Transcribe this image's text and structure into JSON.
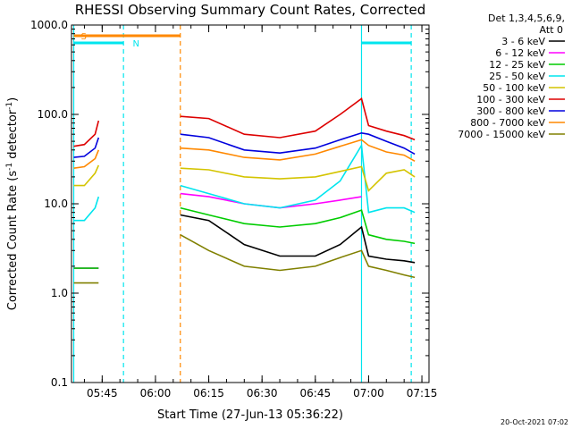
{
  "chart_data": {
    "type": "line",
    "title": "RHESSI Observing Summary Count Rates, Corrected",
    "xlabel": "Start Time (27-Jun-13 05:36:22)",
    "ylabel": "Corrected Count Rate (s",
    "ylabel_sup1": "-1",
    "ylabel_mid": " detector",
    "ylabel_sup2": "-1",
    "ylabel_end": ")",
    "yscale": "log",
    "ylim": [
      0.1,
      1000
    ],
    "xlim": [
      "05:36:22",
      "07:17:00"
    ],
    "x_ticks": [
      "05:45",
      "06:00",
      "06:15",
      "06:30",
      "06:45",
      "07:00",
      "07:15"
    ],
    "y_ticks": [
      "0.1",
      "1.0",
      "10.0",
      "100.0",
      "1000.0"
    ],
    "legend_header": [
      "Det 1,3,4,5,6,9,",
      "Att 0"
    ],
    "legend_position": "right",
    "series": [
      {
        "name": "3 - 6 keV",
        "color": "#000000",
        "segments": [
          {
            "x": [
              "05:37",
              "05:41",
              "05:44"
            ],
            "y": [
              null,
              null,
              null
            ]
          },
          {
            "x": [
              "06:07",
              "06:15",
              "06:25",
              "06:35",
              "06:45",
              "06:52",
              "06:58",
              "07:00",
              "07:05",
              "07:10",
              "07:13"
            ],
            "y": [
              7.5,
              6.5,
              3.5,
              2.6,
              2.6,
              3.5,
              5.5,
              2.6,
              2.4,
              2.3,
              2.2
            ]
          }
        ]
      },
      {
        "name": "6 - 12 keV",
        "color": "#ff00ff",
        "segments": [
          {
            "x": [
              "05:37",
              "05:40",
              "05:43",
              "05:44"
            ],
            "y": [
              1.9,
              1.9,
              1.9,
              1.9
            ]
          },
          {
            "x": [
              "06:07",
              "06:15",
              "06:25",
              "06:35",
              "06:45",
              "06:52",
              "06:58"
            ],
            "y": [
              13,
              12,
              10,
              9,
              10,
              11,
              12
            ]
          }
        ]
      },
      {
        "name": "12 - 25 keV",
        "color": "#00cc00",
        "segments": [
          {
            "x": [
              "05:37",
              "05:40",
              "05:43",
              "05:44"
            ],
            "y": [
              1.9,
              1.9,
              1.9,
              1.9
            ]
          },
          {
            "x": [
              "06:07",
              "06:15",
              "06:25",
              "06:35",
              "06:45",
              "06:52",
              "06:58",
              "07:00",
              "07:05",
              "07:10",
              "07:13"
            ],
            "y": [
              9,
              7.5,
              6,
              5.5,
              6,
              7,
              8.5,
              4.5,
              4,
              3.8,
              3.6
            ]
          }
        ]
      },
      {
        "name": "25 - 50 keV",
        "color": "#00e5ee",
        "segments": [
          {
            "x": [
              "05:37",
              "05:40",
              "05:43",
              "05:44"
            ],
            "y": [
              6.5,
              6.5,
              9,
              12
            ]
          },
          {
            "x": [
              "06:07",
              "06:15",
              "06:25",
              "06:35",
              "06:45",
              "06:52",
              "06:58",
              "07:00",
              "07:05",
              "07:10",
              "07:13"
            ],
            "y": [
              16,
              13,
              10,
              9,
              11,
              18,
              45,
              8,
              9,
              9,
              8
            ]
          }
        ]
      },
      {
        "name": "50 - 100 keV",
        "color": "#d4c400",
        "segments": [
          {
            "x": [
              "05:37",
              "05:40",
              "05:43",
              "05:44"
            ],
            "y": [
              16,
              16,
              22,
              27
            ]
          },
          {
            "x": [
              "06:07",
              "06:15",
              "06:25",
              "06:35",
              "06:45",
              "06:52",
              "06:58",
              "07:00",
              "07:05",
              "07:10",
              "07:13"
            ],
            "y": [
              25,
              24,
              20,
              19,
              20,
              23,
              26,
              14,
              22,
              24,
              20
            ]
          }
        ]
      },
      {
        "name": "100 - 300 keV",
        "color": "#dd0000",
        "segments": [
          {
            "x": [
              "05:37",
              "05:40",
              "05:43",
              "05:44"
            ],
            "y": [
              44,
              46,
              60,
              85
            ]
          },
          {
            "x": [
              "06:07",
              "06:15",
              "06:25",
              "06:35",
              "06:45",
              "06:52",
              "06:58",
              "07:00",
              "07:05",
              "07:10",
              "07:13"
            ],
            "y": [
              95,
              90,
              60,
              55,
              65,
              100,
              150,
              75,
              65,
              58,
              52
            ]
          }
        ]
      },
      {
        "name": "300 - 800 keV",
        "color": "#0000dd",
        "segments": [
          {
            "x": [
              "05:37",
              "05:40",
              "05:43",
              "05:44"
            ],
            "y": [
              33,
              34,
              42,
              55
            ]
          },
          {
            "x": [
              "06:07",
              "06:15",
              "06:25",
              "06:35",
              "06:45",
              "06:52",
              "06:58",
              "07:00",
              "07:05",
              "07:10",
              "07:13"
            ],
            "y": [
              60,
              55,
              40,
              37,
              42,
              52,
              62,
              60,
              50,
              42,
              36
            ]
          }
        ]
      },
      {
        "name": "800 - 7000 keV",
        "color": "#ff8800",
        "segments": [
          {
            "x": [
              "05:37",
              "05:40",
              "05:43",
              "05:44"
            ],
            "y": [
              25,
              26,
              32,
              40
            ]
          },
          {
            "x": [
              "06:07",
              "06:15",
              "06:25",
              "06:35",
              "06:45",
              "06:52",
              "06:58",
              "07:00",
              "07:05",
              "07:10",
              "07:13"
            ],
            "y": [
              42,
              40,
              33,
              31,
              36,
              44,
              52,
              45,
              38,
              35,
              30
            ]
          }
        ]
      },
      {
        "name": "7000 - 15000 keV",
        "color": "#808000",
        "segments": [
          {
            "x": [
              "05:37",
              "05:40",
              "05:43",
              "05:44"
            ],
            "y": [
              1.3,
              1.3,
              1.3,
              1.3
            ]
          },
          {
            "x": [
              "06:07",
              "06:15",
              "06:25",
              "06:35",
              "06:45",
              "06:52",
              "06:58",
              "07:00",
              "07:05",
              "07:10",
              "07:13"
            ],
            "y": [
              4.5,
              3,
              2,
              1.8,
              2,
              2.5,
              3,
              2,
              1.8,
              1.6,
              1.5
            ]
          }
        ]
      }
    ],
    "markers": [
      {
        "label": "",
        "time": "05:37",
        "color": "#00e5ee",
        "style": "solid"
      },
      {
        "label": "",
        "time": "05:51",
        "color": "#00e5ee",
        "style": "dashed"
      },
      {
        "label": "",
        "time": "06:07",
        "color": "#ff8800",
        "style": "dashed"
      },
      {
        "label": "",
        "time": "06:58",
        "color": "#00e5ee",
        "style": "solid"
      },
      {
        "label": "",
        "time": "07:12",
        "color": "#00e5ee",
        "style": "dashed"
      }
    ],
    "flags": [
      {
        "label": "S",
        "start": "05:37",
        "end": "06:07",
        "color": "#ff8800"
      },
      {
        "label": "N",
        "start": "05:37",
        "end": "05:51",
        "color": "#00e5ee"
      },
      {
        "label": "",
        "start": "06:58",
        "end": "07:12",
        "color": "#00e5ee"
      }
    ]
  },
  "footer_timestamp": "20-Oct-2021 07:02"
}
